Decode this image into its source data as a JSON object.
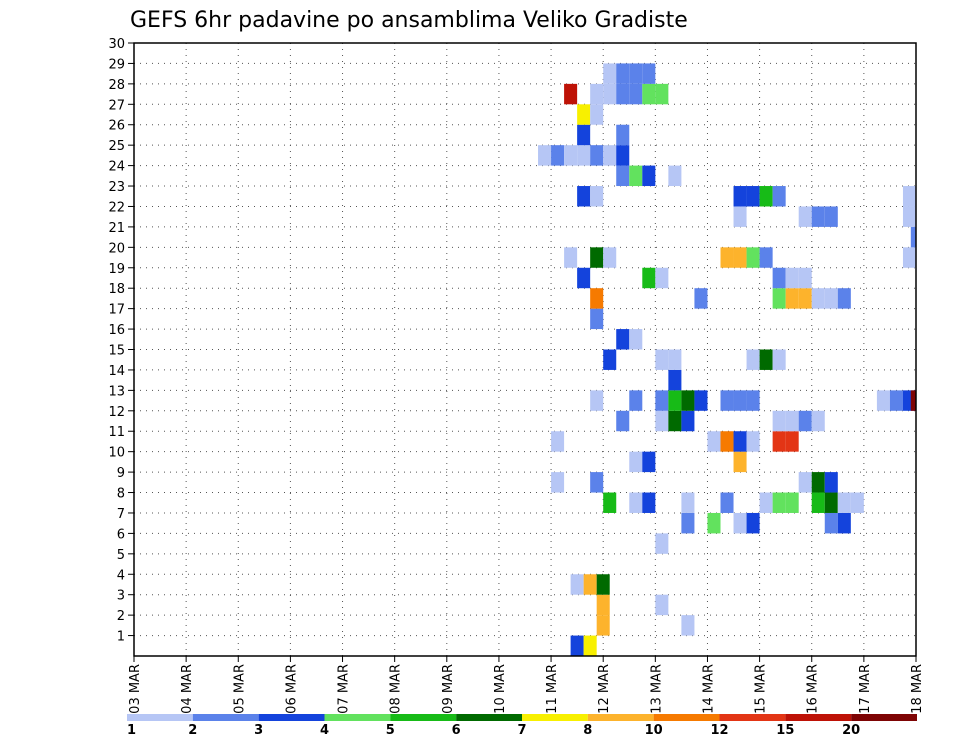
{
  "chart_data": {
    "type": "heatmap",
    "title": "GEFS 6hr padavine po ansamblima Veliko Gradiste",
    "xlabel": "",
    "ylabel": "",
    "x_ticks": [
      "03 MAR",
      "04 MAR",
      "05 MAR",
      "06 MAR",
      "07 MAR",
      "08 MAR",
      "09 MAR",
      "10 MAR",
      "11 MAR",
      "12 MAR",
      "13 MAR",
      "14 MAR",
      "15 MAR",
      "16 MAR",
      "17 MAR",
      "18 MAR"
    ],
    "y_ticks": [
      "1",
      "2",
      "3",
      "4",
      "5",
      "6",
      "7",
      "8",
      "9",
      "10",
      "11",
      "12",
      "13",
      "14",
      "15",
      "16",
      "17",
      "18",
      "19",
      "20",
      "21",
      "22",
      "23",
      "24",
      "25",
      "26",
      "27",
      "28",
      "29",
      "30"
    ],
    "x_units": "6-hour steps since 03 MAR 00Z",
    "xlim": [
      0,
      60
    ],
    "ylim": [
      0,
      30
    ],
    "grid": true,
    "colorbar": {
      "labels": [
        "1",
        "2",
        "3",
        "4",
        "5",
        "6",
        "7",
        "8",
        "10",
        "12",
        "15",
        "20"
      ],
      "colors": [
        "#b6c6f5",
        "#5b82ea",
        "#1443dc",
        "#62e25e",
        "#17bb17",
        "#006a00",
        "#f8f000",
        "#fdb32c",
        "#f67a00",
        "#e33515",
        "#be1206",
        "#7e0404"
      ]
    },
    "cells": [
      [
        33.5,
        0,
        2
      ],
      [
        34.5,
        0,
        6
      ],
      [
        35.5,
        1,
        7
      ],
      [
        35.5,
        2,
        7
      ],
      [
        33.5,
        3,
        0
      ],
      [
        34.5,
        3,
        7
      ],
      [
        35.5,
        3,
        5
      ],
      [
        40,
        2,
        0
      ],
      [
        42,
        1,
        0
      ],
      [
        40,
        5,
        0
      ],
      [
        42,
        6,
        1
      ],
      [
        44,
        6,
        3
      ],
      [
        46,
        6,
        0
      ],
      [
        47,
        6,
        2
      ],
      [
        53,
        6,
        1
      ],
      [
        54,
        6,
        2
      ],
      [
        36,
        7,
        4
      ],
      [
        38,
        7,
        0
      ],
      [
        39,
        7,
        2
      ],
      [
        42,
        7,
        0
      ],
      [
        45,
        7,
        1
      ],
      [
        48,
        7,
        0
      ],
      [
        49,
        7,
        3
      ],
      [
        50,
        7,
        3
      ],
      [
        52,
        7,
        4
      ],
      [
        53,
        7,
        5
      ],
      [
        54,
        7,
        0
      ],
      [
        55,
        7,
        0
      ],
      [
        32,
        8,
        0
      ],
      [
        35,
        8,
        1
      ],
      [
        51,
        8,
        0
      ],
      [
        52,
        8,
        5
      ],
      [
        53,
        8,
        2
      ],
      [
        38,
        9,
        0
      ],
      [
        39,
        9,
        2
      ],
      [
        46,
        9,
        7
      ],
      [
        32,
        10,
        0
      ],
      [
        44,
        10,
        0
      ],
      [
        45,
        10,
        8
      ],
      [
        46,
        10,
        2
      ],
      [
        47,
        10,
        0
      ],
      [
        49,
        10,
        9
      ],
      [
        50,
        10,
        9
      ],
      [
        37,
        11,
        1
      ],
      [
        40,
        11,
        0
      ],
      [
        41,
        11,
        5
      ],
      [
        42,
        11,
        2
      ],
      [
        49,
        11,
        0
      ],
      [
        50,
        11,
        0
      ],
      [
        51,
        11,
        1
      ],
      [
        52,
        11,
        0
      ],
      [
        35,
        12,
        0
      ],
      [
        38,
        12,
        1
      ],
      [
        40,
        12,
        1
      ],
      [
        41,
        12,
        4
      ],
      [
        42,
        12,
        5
      ],
      [
        43,
        12,
        2
      ],
      [
        45,
        12,
        1
      ],
      [
        46,
        12,
        1
      ],
      [
        47,
        12,
        1
      ],
      [
        57,
        12,
        0
      ],
      [
        58,
        12,
        1
      ],
      [
        59,
        12,
        2
      ],
      [
        59.6,
        12,
        11
      ],
      [
        41,
        13,
        2
      ],
      [
        36,
        14,
        2
      ],
      [
        40,
        14,
        0
      ],
      [
        41,
        14,
        0
      ],
      [
        47,
        14,
        0
      ],
      [
        48,
        14,
        5
      ],
      [
        49,
        14,
        0
      ],
      [
        37,
        15,
        2
      ],
      [
        38,
        15,
        0
      ],
      [
        35,
        16,
        1
      ],
      [
        35,
        17,
        8
      ],
      [
        43,
        17,
        1
      ],
      [
        49,
        17,
        3
      ],
      [
        50,
        17,
        7
      ],
      [
        51,
        17,
        7
      ],
      [
        52,
        17,
        0
      ],
      [
        53,
        17,
        0
      ],
      [
        54,
        17,
        1
      ],
      [
        34,
        18,
        2
      ],
      [
        39,
        18,
        4
      ],
      [
        40,
        18,
        0
      ],
      [
        49,
        18,
        1
      ],
      [
        50,
        18,
        0
      ],
      [
        51,
        18,
        0
      ],
      [
        33,
        19,
        0
      ],
      [
        35,
        19,
        5
      ],
      [
        36,
        19,
        0
      ],
      [
        45,
        19,
        7
      ],
      [
        46,
        19,
        7
      ],
      [
        47,
        19,
        3
      ],
      [
        48,
        19,
        1
      ],
      [
        59,
        19,
        0
      ],
      [
        59.6,
        20,
        1
      ],
      [
        46,
        21,
        0
      ],
      [
        51,
        21,
        0
      ],
      [
        52,
        21,
        1
      ],
      [
        53,
        21,
        1
      ],
      [
        59,
        21,
        0
      ],
      [
        34,
        22,
        2
      ],
      [
        35,
        22,
        0
      ],
      [
        46,
        22,
        2
      ],
      [
        47,
        22,
        2
      ],
      [
        48,
        22,
        4
      ],
      [
        49,
        22,
        1
      ],
      [
        59,
        22,
        0
      ],
      [
        37,
        23,
        1
      ],
      [
        38,
        23,
        3
      ],
      [
        39,
        23,
        2
      ],
      [
        41,
        23,
        0
      ],
      [
        31,
        24,
        0
      ],
      [
        32,
        24,
        1
      ],
      [
        33,
        24,
        0
      ],
      [
        34,
        24,
        0
      ],
      [
        35,
        24,
        1
      ],
      [
        36,
        24,
        0
      ],
      [
        37,
        24,
        2
      ],
      [
        34,
        25,
        2
      ],
      [
        37,
        25,
        1
      ],
      [
        34,
        26,
        6
      ],
      [
        35,
        26,
        0
      ],
      [
        33,
        27,
        10
      ],
      [
        35,
        27,
        0
      ],
      [
        36,
        27,
        0
      ],
      [
        37,
        27,
        1
      ],
      [
        38,
        27,
        1
      ],
      [
        39,
        27,
        3
      ],
      [
        40,
        27,
        3
      ],
      [
        36,
        28,
        0
      ],
      [
        37,
        28,
        1
      ],
      [
        38,
        28,
        1
      ],
      [
        39,
        28,
        1
      ]
    ]
  }
}
